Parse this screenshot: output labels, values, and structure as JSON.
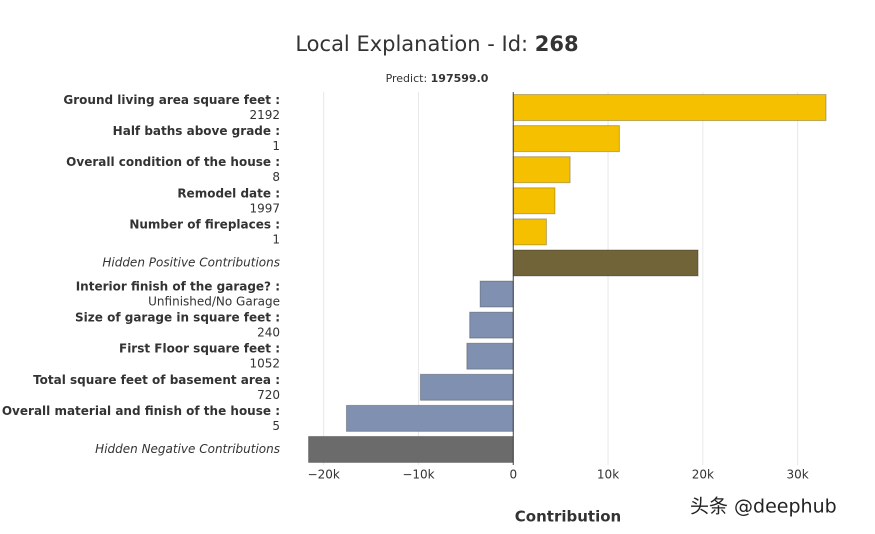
{
  "chart_data": {
    "type": "hbar",
    "title": "Local Explanation - Id:",
    "id": "268",
    "subtitle": "Predict:",
    "predict": "197599.0",
    "categories": [
      "Ground living area square feet :",
      "Half baths above grade :",
      "Overall condition of the house :",
      "Remodel date :",
      "Number of fireplaces :",
      "Hidden Positive Contributions",
      "Interior finish of the garage? :",
      "Size of garage in square feet :",
      "First Floor square feet :",
      "Total square feet of basement area :",
      "Overall material and finish of the house :",
      "Hidden Negative Contributions"
    ],
    "feature_values": [
      "2192",
      "1",
      "8",
      "1997",
      "1",
      null,
      "Unfinished/No Garage",
      "240",
      "1052",
      "720",
      "5",
      null
    ],
    "values": [
      33000,
      11200,
      6000,
      4400,
      3500,
      19500,
      -3500,
      -4600,
      -4900,
      -9800,
      -17600,
      -21600
    ],
    "colors": [
      "#f5c000",
      "#f5c000",
      "#f5c000",
      "#f5c000",
      "#f5c000",
      "#706438",
      "#8090b0",
      "#8090b0",
      "#8090b0",
      "#8090b0",
      "#8090b0",
      "#6b6b6b"
    ],
    "xlabel": "Contribution",
    "xlim": [
      -22500,
      35000
    ],
    "xticks": [
      {
        "value": -20000,
        "label": "−20k"
      },
      {
        "value": -10000,
        "label": "−10k"
      },
      0,
      {
        "value": 10000,
        "label": "10k"
      },
      {
        "value": 20000,
        "label": "20k"
      },
      {
        "value": 30000,
        "label": "30k"
      }
    ],
    "grid": true,
    "watermark": "头条 @deephub"
  }
}
